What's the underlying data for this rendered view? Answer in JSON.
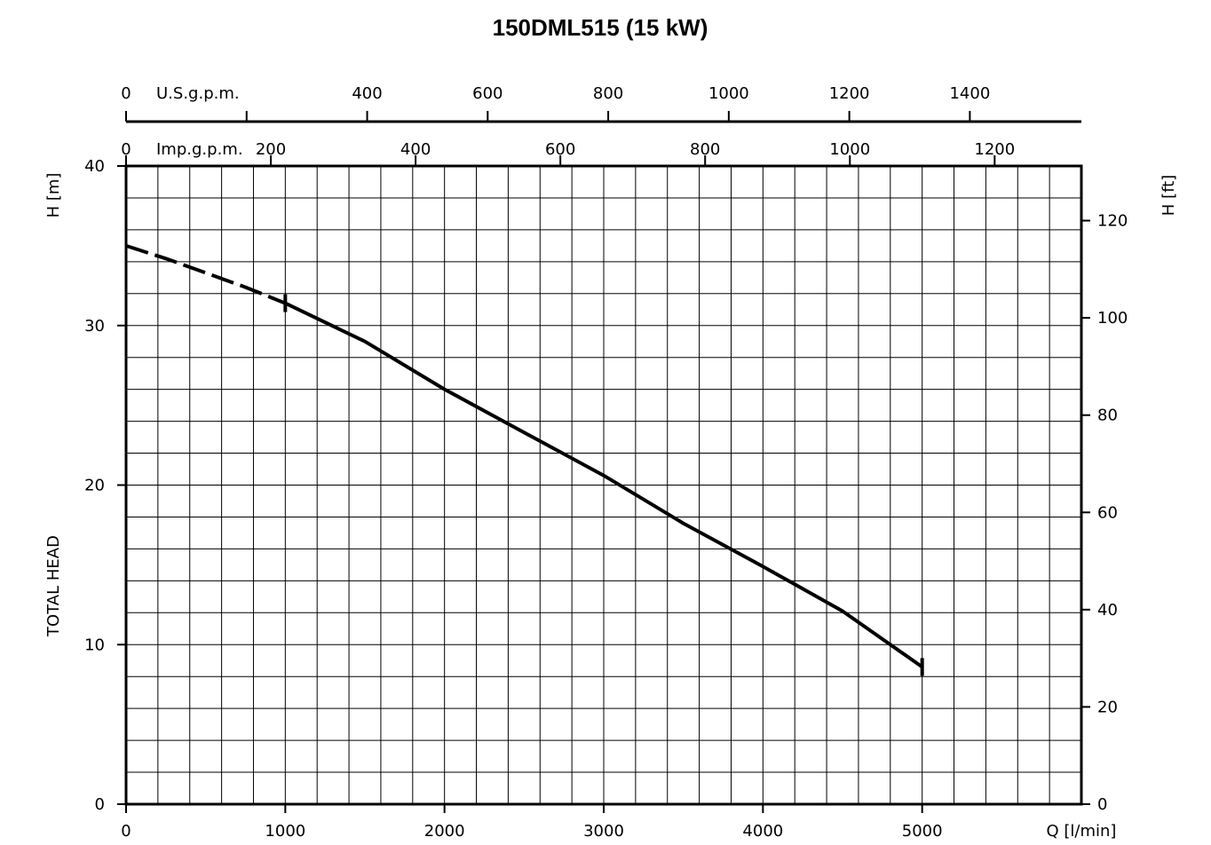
{
  "chart_data": {
    "type": "line",
    "title": "150DML515 (15 kW)",
    "xlabel": "Q [l/min]",
    "ylabel": "H [m]",
    "ylabel2": "H [ft]",
    "ylabel_side": "TOTAL HEAD",
    "xlim": [
      0,
      6000
    ],
    "ylim": [
      0,
      40
    ],
    "xticks": [
      "0",
      "1000",
      "2000",
      "3000",
      "4000",
      "5000"
    ],
    "yticks": [
      "0",
      "10",
      "20",
      "30",
      "40"
    ],
    "ft_ticks": [
      "0",
      "20",
      "40",
      "60",
      "80",
      "100",
      "120"
    ],
    "usgpm_label": "U.S.g.p.m.",
    "usgpm_ticks": [
      "0",
      "400",
      "600",
      "800",
      "1000",
      "1200",
      "1400"
    ],
    "impgpm_label": "Imp.g.p.m.",
    "impgpm_ticks": [
      "0",
      "200",
      "400",
      "600",
      "800",
      "1000",
      "1200"
    ],
    "grid": true,
    "series": [
      {
        "x": [
          0,
          250,
          500,
          750,
          1000
        ],
        "y": [
          35.0,
          34.2,
          33.3,
          32.4,
          31.4
        ],
        "style": "dashed"
      },
      {
        "x": [
          1000,
          1500,
          2000,
          2500,
          3000,
          3500,
          4000,
          4500,
          5000
        ],
        "y": [
          31.4,
          29.0,
          26.0,
          23.3,
          20.6,
          17.6,
          14.9,
          12.1,
          8.6
        ],
        "style": "solid"
      }
    ],
    "line_color": "#000000",
    "grid_color": "#000000"
  }
}
